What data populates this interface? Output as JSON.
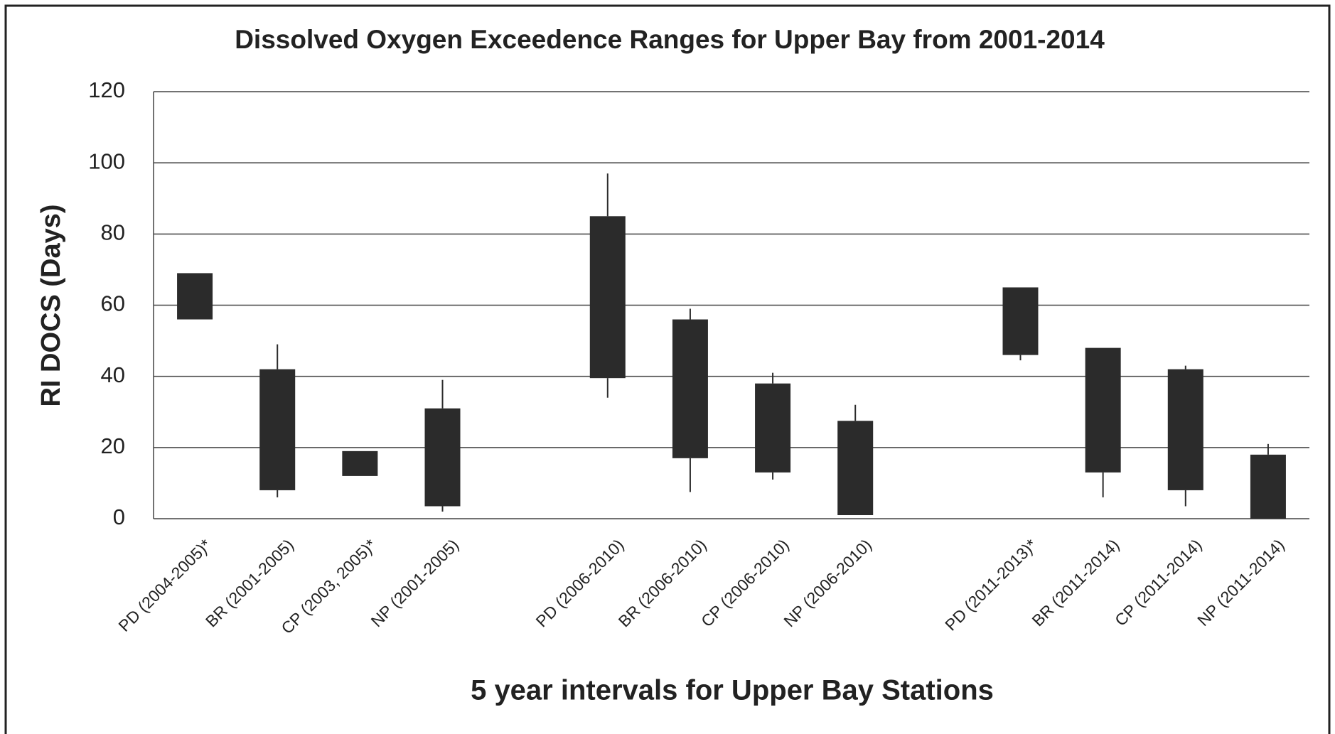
{
  "chart_data": {
    "type": "candlestick",
    "title": "Dissolved Oxygen Exceedence Ranges for Upper Bay from 2001-2014",
    "x_label": "5 year intervals for Upper Bay Stations",
    "y_label": "RI DOCS (Days)",
    "categories": [
      "PD (2004-2005)*",
      "BR (2001-2005)",
      "CP (2003, 2005)*",
      "NP (2001-2005)",
      null,
      "PD (2006-2010)",
      "BR (2006-2010)",
      "CP (2006-2010)",
      "NP (2006-2010)",
      null,
      "PD (2011-2013)*",
      "BR (2011-2014)",
      "CP (2011-2014)",
      "NP (2011-2014)"
    ],
    "box_high": [
      69,
      42,
      19,
      31,
      null,
      85,
      56,
      38,
      27.5,
      null,
      65,
      48,
      42,
      18
    ],
    "box_low": [
      56,
      8,
      12,
      3.5,
      null,
      39.5,
      17,
      13,
      1,
      null,
      46,
      13,
      8,
      0
    ],
    "whisker_high": [
      null,
      49,
      null,
      39,
      null,
      97,
      59,
      41,
      32,
      null,
      null,
      null,
      43,
      21
    ],
    "whisker_low": [
      null,
      6,
      null,
      2,
      null,
      34,
      7.5,
      11,
      null,
      null,
      44.5,
      6,
      3.5,
      null
    ],
    "color": "#2b2b2b",
    "ylim": [
      0,
      120
    ],
    "yticks": [
      0,
      20,
      40,
      60,
      80,
      100,
      120
    ],
    "grid": true
  }
}
